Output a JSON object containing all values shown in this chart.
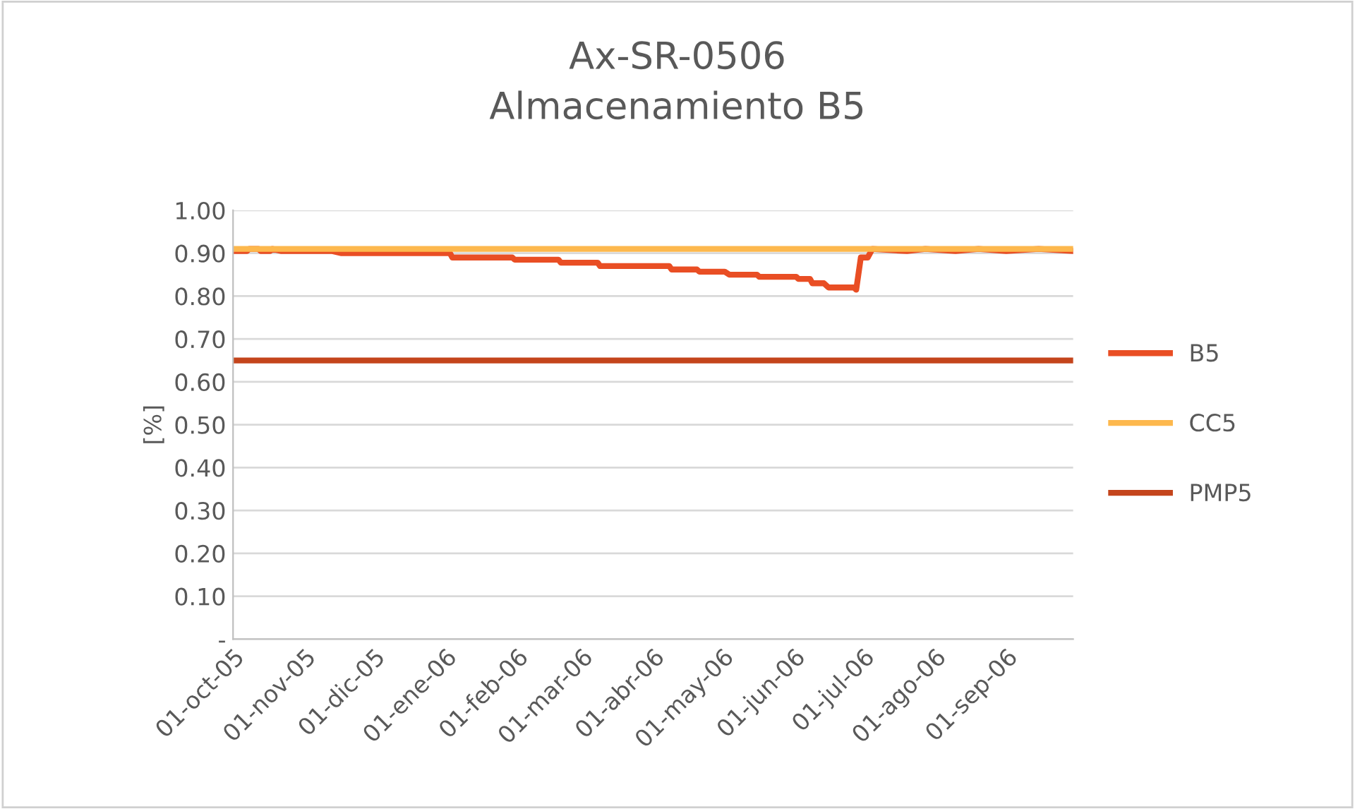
{
  "chart_data": {
    "type": "line",
    "title": "Ax-SR-0506\nAlmacenamiento B5",
    "ylabel": "[%]",
    "series": [
      {
        "name": "B5",
        "color": "#e94e24",
        "x": [
          "2005-10-01",
          "2005-10-07",
          "2005-10-08",
          "2005-10-12",
          "2005-10-13",
          "2005-10-17",
          "2005-10-18",
          "2005-10-22",
          "2005-11-13",
          "2005-11-17",
          "2006-01-03",
          "2006-01-04",
          "2006-01-30",
          "2006-01-31",
          "2006-02-19",
          "2006-02-20",
          "2006-03-08",
          "2006-03-09",
          "2006-04-08",
          "2006-04-09",
          "2006-04-20",
          "2006-04-21",
          "2006-05-02",
          "2006-05-04",
          "2006-05-16",
          "2006-05-17",
          "2006-06-02",
          "2006-06-03",
          "2006-06-08",
          "2006-06-09",
          "2006-06-14",
          "2006-06-16",
          "2006-06-27",
          "2006-06-28",
          "2006-06-30",
          "2006-07-03",
          "2006-07-05",
          "2006-07-20",
          "2006-07-28",
          "2006-08-10",
          "2006-08-20",
          "2006-09-01",
          "2006-09-15",
          "2006-09-30"
        ],
        "values": [
          0.905,
          0.905,
          0.91,
          0.91,
          0.905,
          0.905,
          0.91,
          0.905,
          0.905,
          0.9,
          0.9,
          0.89,
          0.89,
          0.885,
          0.885,
          0.878,
          0.878,
          0.87,
          0.87,
          0.862,
          0.862,
          0.857,
          0.857,
          0.85,
          0.85,
          0.845,
          0.845,
          0.84,
          0.84,
          0.83,
          0.83,
          0.82,
          0.82,
          0.815,
          0.89,
          0.89,
          0.91,
          0.905,
          0.91,
          0.905,
          0.91,
          0.905,
          0.91,
          0.905
        ]
      },
      {
        "name": "CC5",
        "color": "#fdb84d",
        "x": [
          "2005-10-01",
          "2006-09-30"
        ],
        "values": [
          0.91,
          0.91
        ]
      },
      {
        "name": "PMP5",
        "color": "#c4451c",
        "x": [
          "2005-10-01",
          "2006-09-30"
        ],
        "values": [
          0.65,
          0.65
        ]
      }
    ],
    "xlim": [
      "2005-10-01",
      "2006-09-30"
    ],
    "xticks": [
      {
        "value": "2005-10-01",
        "label": "01-oct-05"
      },
      {
        "value": "2005-11-01",
        "label": "01-nov-05"
      },
      {
        "value": "2005-12-01",
        "label": "01-dic-05"
      },
      {
        "value": "2006-01-01",
        "label": "01-ene-06"
      },
      {
        "value": "2006-02-01",
        "label": "01-feb-06"
      },
      {
        "value": "2006-03-01",
        "label": "01-mar-06"
      },
      {
        "value": "2006-04-01",
        "label": "01-abr-06"
      },
      {
        "value": "2006-05-01",
        "label": "01-may-06"
      },
      {
        "value": "2006-06-01",
        "label": "01-jun-06"
      },
      {
        "value": "2006-07-01",
        "label": "01-jul-06"
      },
      {
        "value": "2006-08-01",
        "label": "01-ago-06"
      },
      {
        "value": "2006-09-01",
        "label": "01-sep-06"
      }
    ],
    "ylim": [
      0,
      1.0
    ],
    "yticks": [
      {
        "value": 0,
        "label": "-"
      },
      {
        "value": 0.1,
        "label": "0.10"
      },
      {
        "value": 0.2,
        "label": "0.20"
      },
      {
        "value": 0.3,
        "label": "0.30"
      },
      {
        "value": 0.4,
        "label": "0.40"
      },
      {
        "value": 0.5,
        "label": "0.50"
      },
      {
        "value": 0.6,
        "label": "0.60"
      },
      {
        "value": 0.7,
        "label": "0.70"
      },
      {
        "value": 0.8,
        "label": "0.80"
      },
      {
        "value": 0.9,
        "label": "0.90"
      },
      {
        "value": 1.0,
        "label": "1.00"
      }
    ],
    "grid": "y",
    "legend": "right",
    "marker": "none",
    "line_style": "solid"
  }
}
